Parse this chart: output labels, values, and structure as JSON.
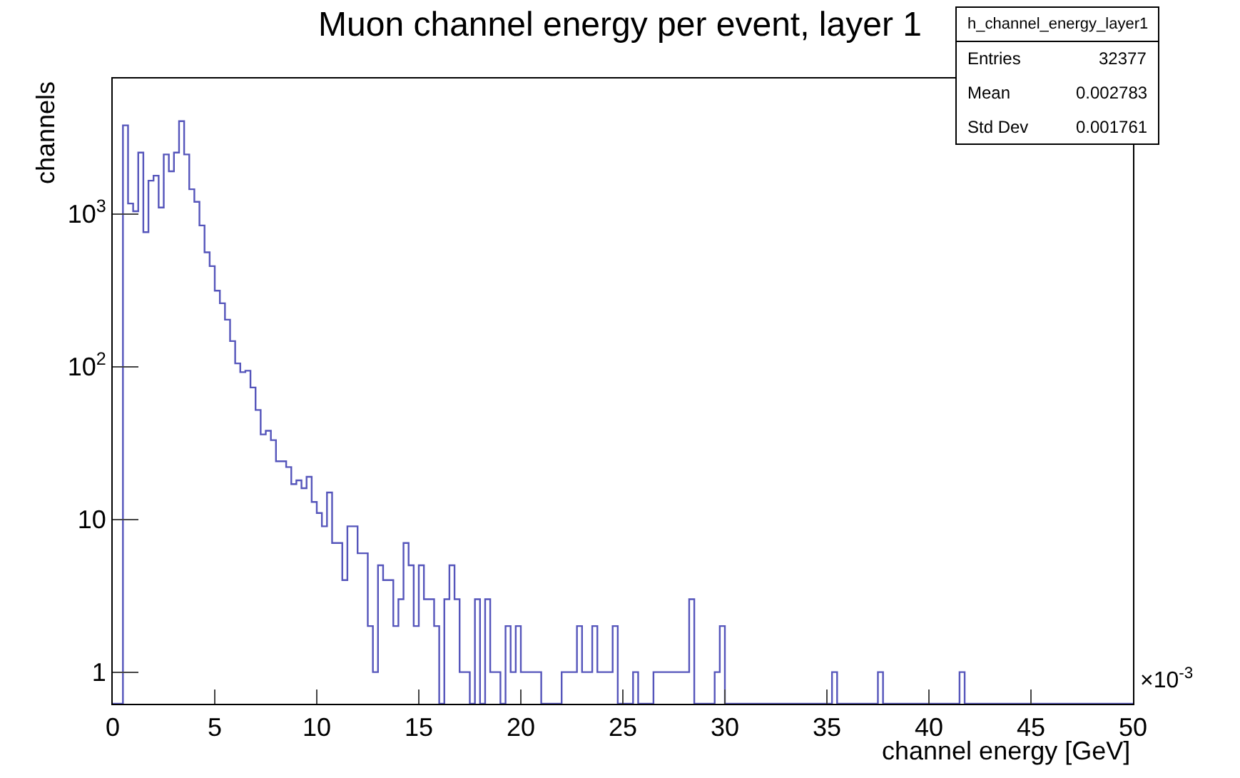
{
  "chart_data": {
    "type": "histogram",
    "title": "Muon channel energy per event, layer 1",
    "xlabel": "channel energy [GeV]",
    "ylabel": "channels",
    "bins": [
      0,
      0.25,
      0.5,
      0.75,
      1,
      1.25,
      1.5,
      1.75,
      2,
      2.25,
      2.5,
      2.75,
      3,
      3.25,
      3.5,
      3.75,
      4,
      4.25,
      4.5,
      4.75,
      5,
      5.25,
      5.5,
      5.75,
      6,
      6.25,
      6.5,
      6.75,
      7,
      7.25,
      7.5,
      7.75,
      8,
      8.25,
      8.5,
      8.75,
      9,
      9.25,
      9.5,
      9.75,
      10,
      10.25,
      10.5,
      10.75,
      11,
      11.25,
      11.5,
      11.75,
      12,
      12.25,
      12.5,
      12.75,
      13,
      13.25,
      13.5,
      13.75,
      14,
      14.25,
      14.5,
      14.75,
      15,
      15.25,
      15.5,
      15.75,
      16,
      16.25,
      16.5,
      16.75,
      17,
      17.25,
      17.5,
      17.75,
      18,
      18.25,
      18.5,
      18.75,
      19,
      19.25,
      19.5,
      19.75,
      20,
      20.25,
      20.5,
      20.75,
      21,
      21.25,
      21.5,
      21.75,
      22,
      22.25,
      22.5,
      22.75,
      23,
      23.25,
      23.5,
      23.75,
      24,
      24.25,
      24.5,
      24.75,
      25,
      25.25,
      25.5,
      25.75,
      26,
      26.25,
      26.5,
      26.75,
      27,
      27.25,
      27.5,
      27.75,
      28,
      28.25,
      28.5,
      28.75,
      29,
      29.25,
      29.5,
      29.75,
      30,
      30.25,
      30.5,
      30.75,
      31,
      31.25,
      31.5,
      31.75,
      32,
      32.25,
      32.5,
      32.75,
      33,
      33.25,
      33.5,
      33.75,
      34,
      34.25,
      34.5,
      34.75,
      35,
      35.25,
      35.5,
      35.75,
      36,
      36.25,
      36.5,
      36.75,
      37,
      37.25,
      37.5,
      37.75,
      38,
      38.25,
      38.5,
      38.75,
      39,
      39.25,
      39.5,
      39.75,
      40,
      40.25,
      40.5,
      40.75,
      41,
      41.25,
      41.5,
      41.75,
      42,
      42.25,
      42.5,
      42.75,
      43,
      43.25,
      43.5,
      43.75,
      44,
      44.25,
      44.5,
      44.75,
      45,
      45.25,
      45.5,
      45.75,
      46,
      46.25,
      46.5,
      46.75,
      47,
      47.25,
      47.5,
      47.75,
      48,
      48.25,
      48.5,
      48.75,
      49,
      49.25,
      49.5,
      49.75,
      50
    ],
    "values": [
      null,
      null,
      3800,
      1170,
      1040,
      2520,
      760,
      1650,
      1780,
      1100,
      2450,
      1900,
      2520,
      4050,
      2450,
      1450,
      1200,
      840,
      560,
      455,
      314,
      260,
      203,
      147,
      105,
      92,
      94,
      73,
      52,
      36,
      38,
      33,
      24,
      24,
      22,
      17,
      18,
      16,
      19,
      13,
      11,
      9,
      15,
      7,
      7,
      4,
      9,
      9,
      6,
      6,
      2,
      1,
      5,
      4,
      4,
      2,
      3,
      7,
      5,
      2,
      5,
      3,
      3,
      2,
      null,
      3,
      5,
      3,
      1,
      1,
      null,
      3,
      null,
      3,
      1,
      1,
      null,
      2,
      1,
      2,
      1,
      1,
      1,
      1,
      null,
      null,
      null,
      null,
      1,
      1,
      1,
      2,
      1,
      1,
      2,
      1,
      1,
      1,
      2,
      null,
      null,
      null,
      1,
      null,
      null,
      null,
      1,
      1,
      1,
      1,
      1,
      1,
      1,
      3,
      null,
      null,
      null,
      null,
      1,
      2,
      null,
      null,
      null,
      null,
      null,
      null,
      null,
      null,
      null,
      null,
      null,
      null,
      null,
      null,
      null,
      null,
      null,
      null,
      null,
      null,
      null,
      1,
      null,
      null,
      null,
      null,
      null,
      null,
      null,
      null,
      1,
      null,
      null,
      null,
      null,
      null,
      null,
      null,
      null,
      null,
      null,
      null,
      null,
      null,
      null,
      null,
      1,
      null,
      null,
      null,
      null,
      null,
      null,
      null,
      null,
      null,
      null,
      null,
      null,
      null,
      null,
      null,
      null,
      null,
      null,
      null,
      null,
      null,
      null,
      null,
      null,
      null,
      null,
      null,
      null,
      null,
      null,
      null,
      null,
      null
    ],
    "color": "#5555bb",
    "log": "y",
    "xlim": [
      0,
      50
    ],
    "xticks": [
      0,
      5,
      10,
      15,
      20,
      25,
      30,
      35,
      40,
      45,
      50
    ],
    "ylim": [
      0.62,
      7700
    ],
    "yticks": [
      1,
      10,
      {
        "value": 100,
        "label": "10$^{2}$"
      },
      {
        "value": 1000,
        "label": "10$^{3}$"
      }
    ],
    "annotations": [
      "×10$^{-3}$",
      "h_channel_energy_layer1",
      "Entries",
      "32377",
      "Mean",
      "0.002783",
      "Std Dev",
      "0.001761"
    ]
  }
}
